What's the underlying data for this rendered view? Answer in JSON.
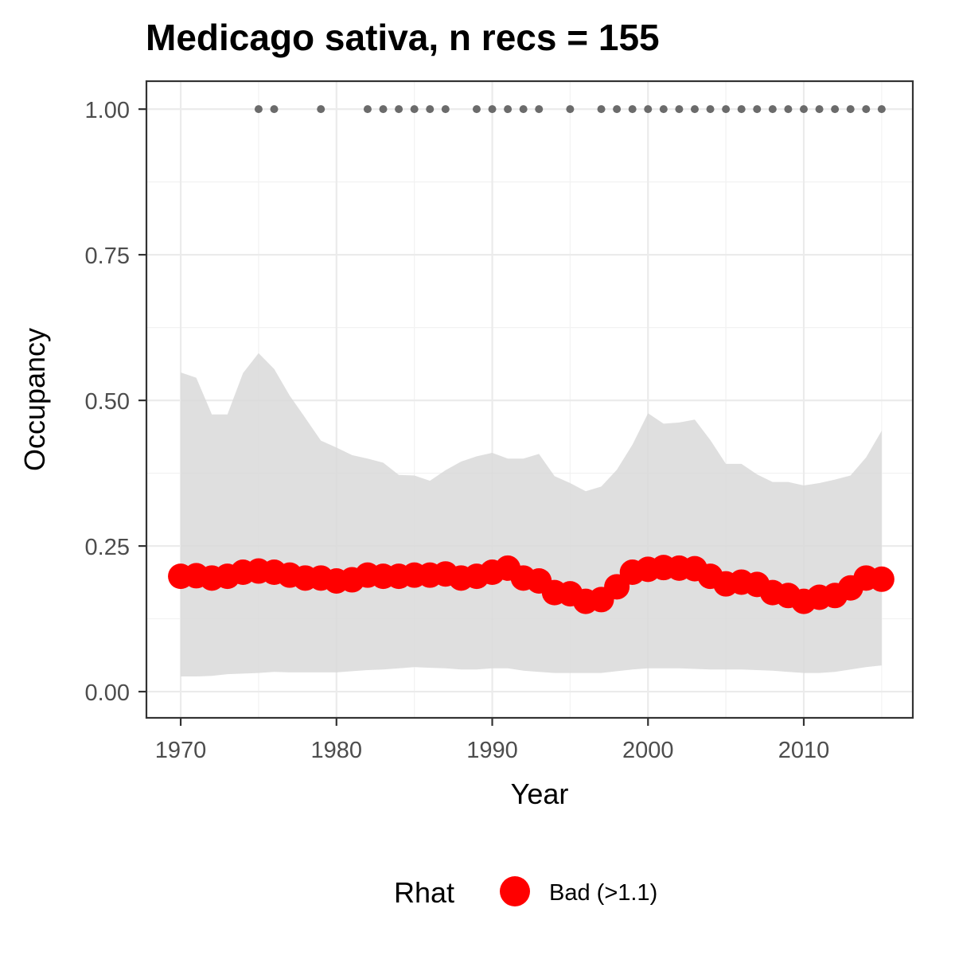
{
  "chart_data": {
    "type": "line",
    "title": "Medicago sativa, n recs = 155",
    "xlabel": "Year",
    "ylabel": "Occupancy",
    "xlim": [
      1967.8,
      1016.6
    ],
    "ylim": [
      -0.045,
      1.048
    ],
    "x_ticks": [
      1970,
      1980,
      1990,
      2000,
      2010
    ],
    "y_ticks": [
      0.0,
      0.25,
      0.5,
      0.75,
      1.0
    ],
    "x_tick_labels": [
      "1970",
      "1980",
      "1990",
      "2000",
      "2010"
    ],
    "y_tick_labels": [
      "0.00",
      "0.25",
      "0.50",
      "0.75",
      "1.00"
    ],
    "grid": true,
    "legend_position": "bottom",
    "legend": {
      "title": "Rhat",
      "entries": [
        {
          "label": "Bad (>1.1)",
          "color": "#ff0000"
        }
      ]
    },
    "colors": {
      "line": "#ff0000",
      "ribbon": "#d9d9d9",
      "record_points": "#6b6b6b",
      "panel_border": "#333333",
      "grid_major": "#ebebeb"
    },
    "series": [
      {
        "years": [
          1970,
          1971,
          1972,
          1973,
          1974,
          1975,
          1976,
          1977,
          1978,
          1979,
          1980,
          1981,
          1982,
          1983,
          1984,
          1985,
          1986,
          1987,
          1988,
          1989,
          1990,
          1991,
          1992,
          1993,
          1994,
          1995,
          1996,
          1997,
          1998,
          1999,
          2000,
          2001,
          2002,
          2003,
          2004,
          2005,
          2006,
          2007,
          2008,
          2009,
          2010,
          2011,
          2012,
          2013,
          2014,
          2015
        ],
        "mean": [
          0.198,
          0.199,
          0.195,
          0.198,
          0.205,
          0.207,
          0.205,
          0.2,
          0.195,
          0.195,
          0.19,
          0.192,
          0.2,
          0.198,
          0.198,
          0.2,
          0.2,
          0.202,
          0.195,
          0.198,
          0.205,
          0.212,
          0.195,
          0.19,
          0.17,
          0.168,
          0.155,
          0.158,
          0.18,
          0.205,
          0.21,
          0.213,
          0.212,
          0.211,
          0.198,
          0.185,
          0.188,
          0.184,
          0.17,
          0.165,
          0.155,
          0.162,
          0.165,
          0.178,
          0.195,
          0.193
        ],
        "upper": [
          0.548,
          0.539,
          0.476,
          0.476,
          0.547,
          0.581,
          0.554,
          0.508,
          0.47,
          0.431,
          0.419,
          0.406,
          0.4,
          0.393,
          0.372,
          0.371,
          0.362,
          0.38,
          0.395,
          0.404,
          0.41,
          0.4,
          0.4,
          0.408,
          0.37,
          0.358,
          0.344,
          0.352,
          0.381,
          0.424,
          0.478,
          0.46,
          0.462,
          0.467,
          0.432,
          0.391,
          0.391,
          0.373,
          0.36,
          0.36,
          0.354,
          0.358,
          0.364,
          0.371,
          0.402,
          0.448
        ],
        "lower": [
          0.026,
          0.026,
          0.027,
          0.03,
          0.031,
          0.032,
          0.034,
          0.033,
          0.033,
          0.033,
          0.033,
          0.035,
          0.037,
          0.038,
          0.04,
          0.042,
          0.041,
          0.04,
          0.038,
          0.038,
          0.04,
          0.04,
          0.036,
          0.034,
          0.032,
          0.032,
          0.032,
          0.032,
          0.035,
          0.038,
          0.04,
          0.04,
          0.04,
          0.039,
          0.038,
          0.038,
          0.038,
          0.037,
          0.036,
          0.034,
          0.032,
          0.032,
          0.034,
          0.038,
          0.042,
          0.045
        ]
      }
    ],
    "record_years": [
      1975,
      1976,
      1979,
      1982,
      1983,
      1984,
      1985,
      1986,
      1987,
      1989,
      1990,
      1991,
      1992,
      1993,
      1995,
      1997,
      1998,
      1999,
      2000,
      2001,
      2002,
      2003,
      2004,
      2005,
      2006,
      2007,
      2008,
      2009,
      2010,
      2011,
      2012,
      2013,
      2014,
      2015
    ],
    "record_value": 1.0
  }
}
